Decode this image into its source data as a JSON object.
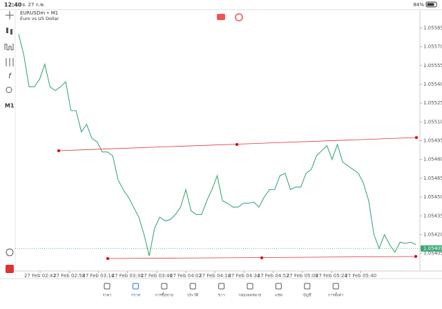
{
  "status_bar": {
    "time": "12:40",
    "date": "จ. 27 ก.พ.",
    "battery": "84%"
  },
  "chart_data": {
    "type": "line",
    "symbol": "EURUSDm • M1",
    "description": "Euro vs US Dollar",
    "color": "#3aa876",
    "values": [
      1.0558,
      1.05563,
      1.05538,
      1.05538,
      1.05544,
      1.05556,
      1.05538,
      1.05535,
      1.05538,
      1.05542,
      1.05519,
      1.05519,
      1.05502,
      1.05508,
      1.05497,
      1.05494,
      1.05486,
      1.05486,
      1.05483,
      1.05464,
      1.05456,
      1.0545,
      1.05442,
      1.05434,
      1.0542,
      1.05403,
      1.05425,
      1.05434,
      1.05431,
      1.05432,
      1.05436,
      1.05442,
      1.05456,
      1.05439,
      1.05436,
      1.05436,
      1.05447,
      1.05456,
      1.05467,
      1.05447,
      1.05445,
      1.05442,
      1.05442,
      1.05445,
      1.05445,
      1.05446,
      1.05442,
      1.0545,
      1.05456,
      1.05456,
      1.05467,
      1.05469,
      1.05456,
      1.05458,
      1.05458,
      1.05469,
      1.05472,
      1.05483,
      1.05487,
      1.05491,
      1.0548,
      1.05492,
      1.05478,
      1.05475,
      1.05472,
      1.05469,
      1.05461,
      1.05447,
      1.0542,
      1.05409,
      1.0542,
      1.05412,
      1.05406,
      1.05414,
      1.05413,
      1.05414,
      1.05412
    ],
    "ylim": [
      1.05391,
      1.05599
    ],
    "yticks": [
      1.05585,
      {
        "value": 1.0557,
        "label": "1.05570"
      },
      1.05555,
      {
        "value": 1.0554,
        "label": "1.05540"
      },
      1.05525,
      {
        "value": 1.0551,
        "label": "1.05510"
      },
      1.05495,
      {
        "value": 1.0548,
        "label": "1.05480"
      },
      1.05465,
      {
        "value": 1.0545,
        "label": "1.05450"
      },
      1.05435,
      {
        "value": 1.0542,
        "label": "1.05420"
      },
      1.05405
    ],
    "xtick_labels": [
      "27 Feb 02:42",
      "27 Feb 02:58",
      "27 Feb 03:14",
      "27 Feb 03:30",
      "27 Feb 03:46",
      "27 Feb 04:02",
      "27 Feb 04:18",
      "27 Feb 04:34",
      "27 Feb 04:52",
      "27 Feb 05:08",
      "27 Feb 05:24",
      "27 Feb 05:40"
    ],
    "current_price": 1.05409
  },
  "left_toolbar": {
    "timeframe": "M1"
  },
  "nav": [
    "ราคา",
    "กราฟ",
    "การซื้อขาย",
    "ประวัติ",
    "ข่าว",
    "กล่องจดหมาย",
    "แชท",
    "บัญชี",
    "การตั้งค่า"
  ]
}
